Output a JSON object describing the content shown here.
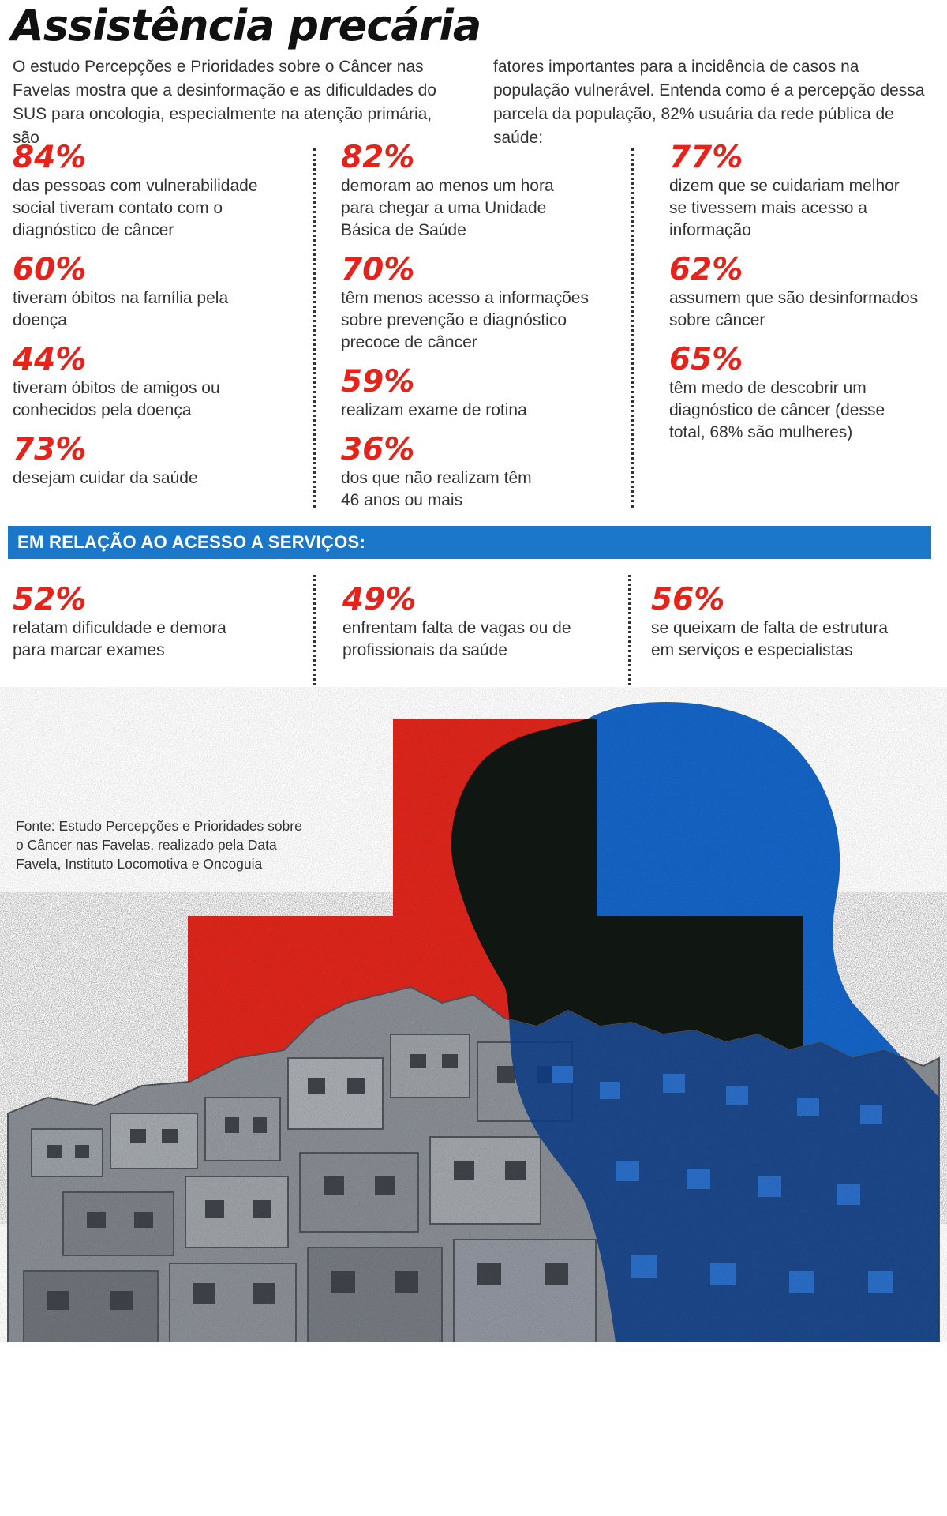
{
  "header": {
    "title": "Assistência precária",
    "intro_left": "O estudo Percepções e Prioridades sobre o Câncer nas Favelas mostra que a desinformação e as dificuldades do SUS para oncologia, especialmente na atenção primária, são",
    "intro_right": "fatores importantes para a incidência de casos na população vulnerável. Entenda como é a percepção dessa parcela da população, 82% usuária da rede pública de saúde:"
  },
  "stats": {
    "col1": [
      {
        "pct": "84%",
        "desc": "das pessoas com vulnerabilidade\nsocial tiveram contato com o\ndiagnóstico de câncer"
      },
      {
        "pct": "60%",
        "desc": "tiveram óbitos na família pela\ndoença"
      },
      {
        "pct": "44%",
        "desc": "tiveram óbitos de amigos ou\nconhecidos pela doença"
      },
      {
        "pct": "73%",
        "desc": "desejam cuidar da saúde"
      }
    ],
    "col2": [
      {
        "pct": "82%",
        "desc": "demoram ao menos um hora\npara chegar a uma Unidade\nBásica de Saúde"
      },
      {
        "pct": "70%",
        "desc": "têm menos acesso a informações\nsobre prevenção e diagnóstico\nprecoce de câncer"
      },
      {
        "pct": "59%",
        "desc": "realizam exame de rotina"
      },
      {
        "pct": "36%",
        "desc": "dos que não realizam têm\n46 anos ou mais"
      }
    ],
    "col3": [
      {
        "pct": "77%",
        "desc": "dizem que se cuidariam melhor\nse tivessem mais acesso a\ninformação"
      },
      {
        "pct": "62%",
        "desc": "assumem que são desinformados\nsobre câncer"
      },
      {
        "pct": "65%",
        "desc": "têm medo de descobrir um\ndiagnóstico de câncer (desse\ntotal, 68% são mulheres)"
      }
    ]
  },
  "access": {
    "heading": "EM RELAÇÃO AO ACESSO A SERVIÇOS:",
    "items": [
      {
        "pct": "52%",
        "desc": "relatam dificuldade e demora\npara marcar exames"
      },
      {
        "pct": "49%",
        "desc": "enfrentam falta de vagas ou de\nprofissionais da saúde"
      },
      {
        "pct": "56%",
        "desc": "se queixam de falta de estrutura\nem serviços e especialistas"
      }
    ]
  },
  "source": "Fonte: Estudo Percepções e Prioridades sobre\no Câncer nas Favelas, realizado pela Data\nFavela, Instituto Locomotiva e Oncoguia",
  "colors": {
    "accent_red": "#e5231b",
    "accent_blue": "#1a77c9",
    "cross_red": "#e0261c",
    "head_blue": "#1565c8"
  },
  "chart_data": {
    "type": "table",
    "title": "Assistência precária",
    "unit": "%",
    "perception": [
      {
        "label": "das pessoas com vulnerabilidade social tiveram contato com o diagnóstico de câncer",
        "value": 84
      },
      {
        "label": "tiveram óbitos na família pela doença",
        "value": 60
      },
      {
        "label": "tiveram óbitos de amigos ou conhecidos pela doença",
        "value": 44
      },
      {
        "label": "desejam cuidar da saúde",
        "value": 73
      },
      {
        "label": "demoram ao menos um hora para chegar a uma Unidade Básica de Saúde",
        "value": 82
      },
      {
        "label": "têm menos acesso a informações sobre prevenção e diagnóstico precoce de câncer",
        "value": 70
      },
      {
        "label": "realizam exame de rotina",
        "value": 59
      },
      {
        "label": "dos que não realizam têm 46 anos ou mais",
        "value": 36
      },
      {
        "label": "dizem que se cuidariam melhor se tivessem mais acesso a informação",
        "value": 77
      },
      {
        "label": "assumem que são desinformados sobre câncer",
        "value": 62
      },
      {
        "label": "têm medo de descobrir um diagnóstico de câncer (desse total, 68% são mulheres)",
        "value": 65
      }
    ],
    "access_to_services": [
      {
        "label": "relatam dificuldade e demora para marcar exames",
        "value": 52
      },
      {
        "label": "enfrentam falta de vagas ou de profissionais da saúde",
        "value": 49
      },
      {
        "label": "se queixam de falta de estrutura em serviços e especialistas",
        "value": 56
      }
    ]
  }
}
